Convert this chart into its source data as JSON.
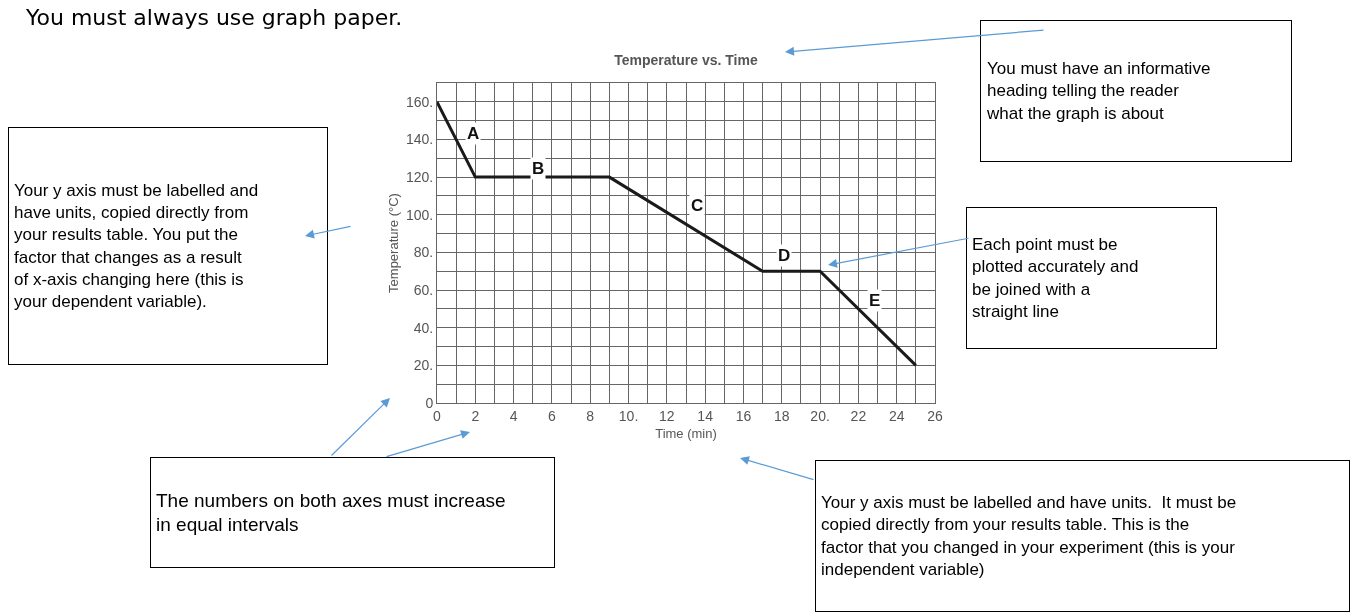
{
  "chart_data": {
    "type": "line",
    "title": "Temperature vs. Time",
    "xlabel": "Time (min)",
    "ylabel": "Temperature (°C)",
    "x": [
      0,
      2,
      9,
      17,
      20,
      25
    ],
    "series": [
      {
        "color": "#1a1a1a",
        "values": [
          160,
          120,
          120,
          70,
          70,
          20
        ]
      }
    ],
    "xlim": [
      0,
      26
    ],
    "ylim": [
      0,
      170
    ],
    "xticks": [
      0,
      {
        "value": 1,
        "label": null
      },
      2,
      {
        "value": 3,
        "label": null
      },
      4,
      {
        "value": 5,
        "label": null
      },
      6,
      {
        "value": 7,
        "label": null
      },
      8,
      {
        "value": 9,
        "label": null
      },
      {
        "value": 10,
        "label": "10."
      },
      {
        "value": 11,
        "label": null
      },
      12,
      {
        "value": 13,
        "label": null
      },
      14,
      {
        "value": 15,
        "label": null
      },
      16,
      {
        "value": 17,
        "label": null
      },
      18,
      {
        "value": 19,
        "label": null
      },
      {
        "value": 20,
        "label": "20."
      },
      {
        "value": 21,
        "label": null
      },
      22,
      {
        "value": 23,
        "label": null
      },
      24,
      {
        "value": 25,
        "label": null
      },
      26
    ],
    "yticks": [
      0,
      {
        "value": 10,
        "label": null
      },
      {
        "value": 20,
        "label": "20."
      },
      {
        "value": 30,
        "label": null
      },
      {
        "value": 40,
        "label": "40."
      },
      {
        "value": 50,
        "label": null
      },
      {
        "value": 60,
        "label": "60."
      },
      {
        "value": 70,
        "label": null
      },
      {
        "value": 80,
        "label": "80."
      },
      {
        "value": 90,
        "label": null
      },
      {
        "value": 100,
        "label": "100."
      },
      {
        "value": 110,
        "label": null
      },
      {
        "value": 120,
        "label": "120."
      },
      {
        "value": 130,
        "label": null
      },
      {
        "value": 140,
        "label": "140."
      },
      {
        "value": 150,
        "label": null
      },
      {
        "value": 160,
        "label": "160."
      },
      {
        "value": 170,
        "label": null
      }
    ],
    "grid": true,
    "marker": "none",
    "line_style": "solid",
    "annotations": [
      "A",
      "B",
      "C",
      "D",
      "E",
      "You must always use graph paper.",
      "You must have an informative heading telling the reader what the graph is about",
      "Your y axis must be labelled and have units, copied directly from your results table. You put the factor that changes as a result of x-axis changing here (this is your dependent variable).",
      "Each point must be plotted accurately and be joined with a straight line",
      "The numbers on both axes must increase in equal intervals",
      "Your y axis must be labelled and have units.  It must be copied directly from your results table. This is the factor that you changed in your experiment (this is your independent variable)"
    ]
  }
}
